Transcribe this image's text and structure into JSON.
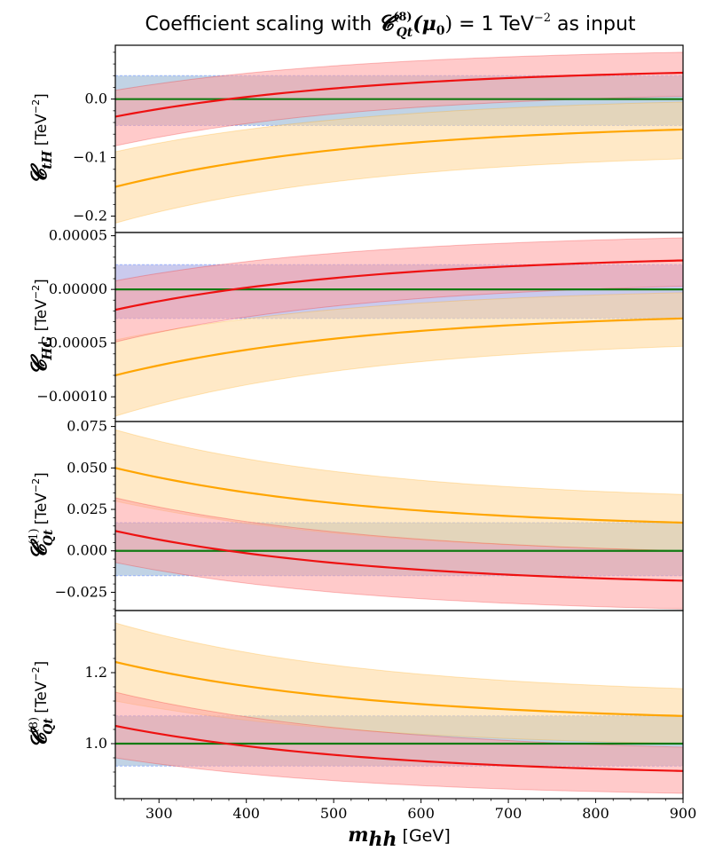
{
  "chart_data": {
    "type": "line",
    "title_parts": {
      "prefix": "Coefficient scaling with ",
      "coef": "𝓒",
      "coef_sup": "(8)",
      "coef_sub": "Qt",
      "arg": "(μ",
      "arg_sub": "0",
      "arg_close": ")",
      "equals": " = 1 TeV",
      "exp": "−2",
      "suffix": " as input"
    },
    "xlabel": {
      "symbol": "m",
      "sub": "hh",
      "unit": " [GeV]"
    },
    "xlim": [
      250,
      900
    ],
    "xticks": [
      300,
      400,
      500,
      600,
      700,
      800,
      900
    ],
    "x": [
      250,
      900
    ],
    "colors": {
      "red_line": "#ee1111",
      "red_band": "#ff9e9e",
      "orange_line": "#ffa500",
      "orange_band": "#ffd799",
      "green_line": "#127a12",
      "blue_band": "#a6c0da",
      "blue_band_alt": "#b3b3e6"
    },
    "panels": [
      {
        "ylabel": {
          "symbol": "𝓒",
          "sub": "tH",
          "sup": "",
          "unit": " [TeV",
          "unit_exp": "−2",
          "unit_close": "]"
        },
        "ylim": [
          -0.228,
          0.092
        ],
        "yticks": [
          0.0,
          -0.1,
          -0.2
        ],
        "ytick_labels": [
          "0.0",
          "−0.1",
          "−0.2"
        ],
        "blue_band": [
          -0.045,
          0.04
        ],
        "green_value": 0.0,
        "red": {
          "y0": -0.03,
          "y1": 0.045,
          "lo0": -0.08,
          "lo1": 0.005,
          "hi0": 0.015,
          "hi1": 0.08
        },
        "orange": {
          "y0": -0.15,
          "y1": -0.052,
          "lo0": -0.212,
          "lo1": -0.102,
          "hi0": -0.09,
          "hi1": -0.005
        }
      },
      {
        "ylabel": {
          "symbol": "𝓒",
          "sub": "HG",
          "sup": "",
          "unit": " [TeV",
          "unit_exp": "−2",
          "unit_close": "]"
        },
        "ylim": [
          -0.000123,
          5.3e-05
        ],
        "yticks": [
          5e-05,
          0.0,
          -5e-05,
          -0.0001
        ],
        "ytick_labels": [
          "0.00005",
          "0.00000",
          "−0.00005",
          "−0.00010"
        ],
        "blue_band": [
          -2.7e-05,
          2.3e-05
        ],
        "green_value": 0.0,
        "red": {
          "y0": -1.9e-05,
          "y1": 2.7e-05,
          "lo0": -4.9e-05,
          "lo1": 3e-06,
          "hi0": 8e-06,
          "hi1": 4.8e-05
        },
        "orange": {
          "y0": -8e-05,
          "y1": -2.7e-05,
          "lo0": -0.000118,
          "lo1": -5.3e-05,
          "hi0": -4.7e-05,
          "hi1": -3e-06
        }
      },
      {
        "ylabel": {
          "symbol": "𝓒",
          "sub": "Qt",
          "sup": "(1)",
          "unit": " [TeV",
          "unit_exp": "−2",
          "unit_close": "]"
        },
        "ylim": [
          -0.036,
          0.078
        ],
        "yticks": [
          0.075,
          0.05,
          0.025,
          0.0,
          -0.025
        ],
        "ytick_labels": [
          "0.075",
          "0.050",
          "0.025",
          "0.000",
          "−0.025"
        ],
        "blue_band": [
          -0.015,
          0.017
        ],
        "green_value": 0.0,
        "red": {
          "y0": 0.012,
          "y1": -0.018,
          "lo0": -0.007,
          "lo1": -0.035,
          "hi0": 0.032,
          "hi1": 0.0
        },
        "orange": {
          "y0": 0.05,
          "y1": 0.017,
          "lo0": 0.03,
          "lo1": 0.0,
          "hi0": 0.073,
          "hi1": 0.034
        }
      },
      {
        "ylabel": {
          "symbol": "𝓒",
          "sub": "Qt",
          "sup": "(8)",
          "unit": " [TeV",
          "unit_exp": "−2",
          "unit_close": "]"
        },
        "ylim": [
          0.845,
          1.375
        ],
        "yticks": [
          1.2,
          1.0
        ],
        "ytick_labels": [
          "1.2",
          "1.0"
        ],
        "blue_band": [
          0.937,
          1.078
        ],
        "green_value": 1.0,
        "red": {
          "y0": 1.05,
          "y1": 0.923,
          "lo0": 0.96,
          "lo1": 0.86,
          "hi0": 1.145,
          "hi1": 0.99
        },
        "orange": {
          "y0": 1.23,
          "y1": 1.078,
          "lo0": 1.12,
          "lo1": 1.0,
          "hi0": 1.34,
          "hi1": 1.155
        }
      }
    ]
  }
}
